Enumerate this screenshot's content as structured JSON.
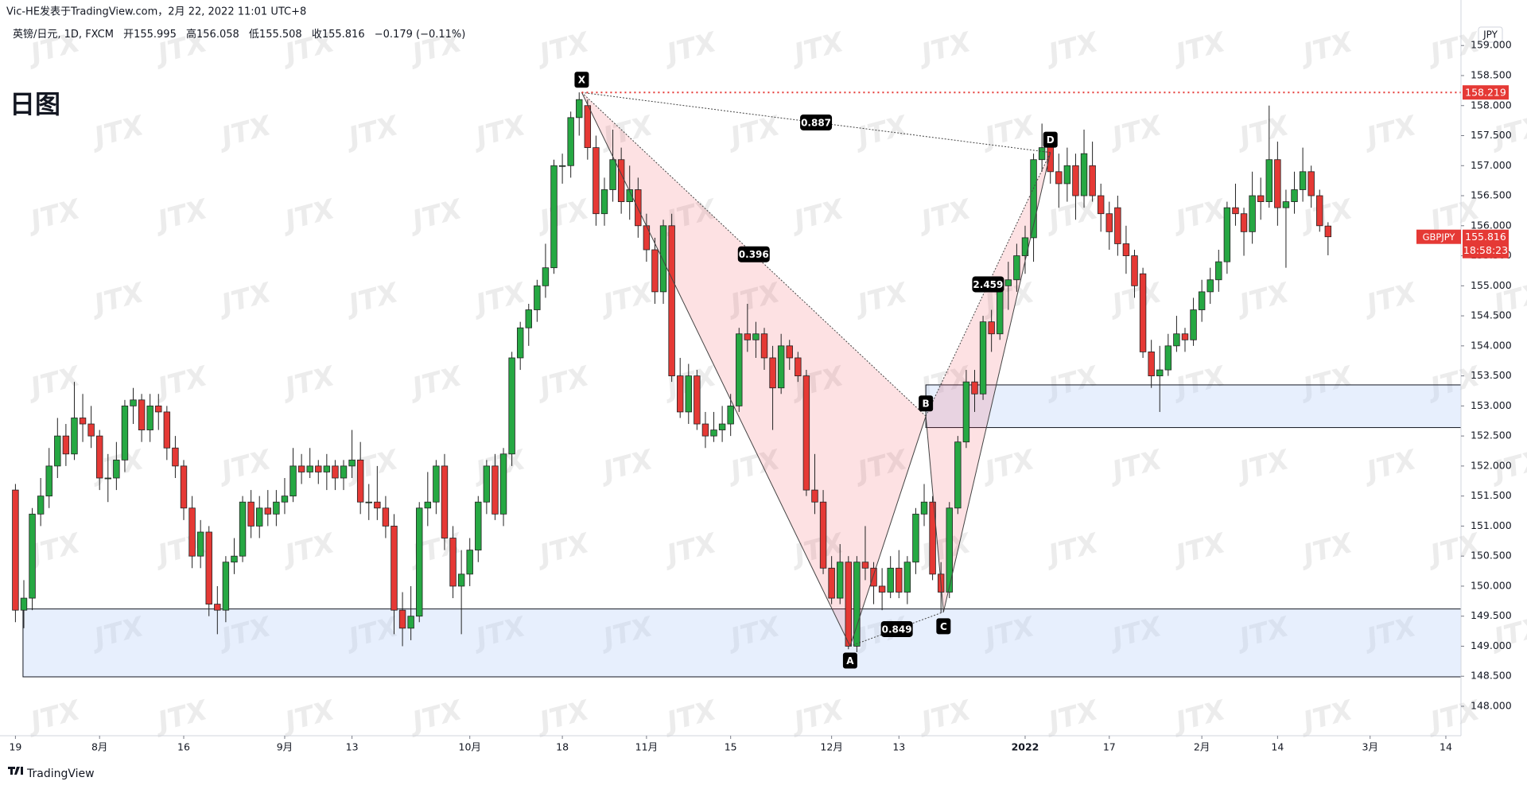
{
  "header": {
    "author": "Vic-HE发表于TradingView.com，2月 22, 2022 11:01 UTC+8",
    "caption": "日图",
    "currency": "JPY",
    "watermark": "JTX"
  },
  "legend": {
    "symbol": "英镑/日元, 1D, FXCM",
    "open_label": "开",
    "open": 155.995,
    "high_label": "高",
    "high": 156.058,
    "low_label": "低",
    "low": 155.508,
    "close_label": "收",
    "close": 155.816,
    "change": "−0.179 (−0.11%)"
  },
  "footer": {
    "brand": "TradingView"
  },
  "chart_data": {
    "type": "candlestick",
    "up_color": "#26a843",
    "down_color": "#e53935",
    "grid": false,
    "xlim": [
      -0.7,
      171.8
    ],
    "ylim": [
      147.51,
      159.44
    ],
    "xticks": [
      {
        "value": 0,
        "label": "19"
      },
      {
        "value": 10,
        "label": "8月"
      },
      {
        "value": 20,
        "label": "16"
      },
      {
        "value": 32,
        "label": "9月"
      },
      {
        "value": 40,
        "label": "13"
      },
      {
        "value": 54,
        "label": "10月"
      },
      {
        "value": 65,
        "label": "18"
      },
      {
        "value": 75,
        "label": "11月"
      },
      {
        "value": 85,
        "label": "15"
      },
      {
        "value": 97,
        "label": "12月"
      },
      {
        "value": 105,
        "label": "13"
      },
      {
        "value": 120,
        "label": "2022"
      },
      {
        "value": 130,
        "label": "17"
      },
      {
        "value": 141,
        "label": "2月"
      },
      {
        "value": 150,
        "label": "14"
      },
      {
        "value": 161,
        "label": "3月"
      },
      {
        "value": 170,
        "label": "14"
      }
    ],
    "yticks": [
      {
        "value": 148,
        "label": "148.000"
      },
      {
        "value": 148.5,
        "label": "148.500"
      },
      {
        "value": 149,
        "label": "149.000"
      },
      {
        "value": 149.5,
        "label": "149.500"
      },
      {
        "value": 150,
        "label": "150.000"
      },
      {
        "value": 150.5,
        "label": "150.500"
      },
      {
        "value": 151,
        "label": "151.000"
      },
      {
        "value": 151.5,
        "label": "151.500"
      },
      {
        "value": 152,
        "label": "152.000"
      },
      {
        "value": 152.5,
        "label": "152.500"
      },
      {
        "value": 153,
        "label": "153.000"
      },
      {
        "value": 153.5,
        "label": "153.500"
      },
      {
        "value": 154,
        "label": "154.000"
      },
      {
        "value": 154.5,
        "label": "154.500"
      },
      {
        "value": 155,
        "label": "155.000"
      },
      {
        "value": 155.5,
        "label": "155.500"
      },
      {
        "value": 156,
        "label": "156.000"
      },
      {
        "value": 156.5,
        "label": "156.500"
      },
      {
        "value": 157,
        "label": "157.000"
      },
      {
        "value": 157.5,
        "label": "157.500"
      },
      {
        "value": 158,
        "label": "158.000"
      },
      {
        "value": 158.5,
        "label": "158.500"
      },
      {
        "value": 159,
        "label": "159.000"
      }
    ],
    "candles": [
      [
        151.6,
        151.7,
        149.4,
        149.6
      ],
      [
        149.6,
        150.1,
        149.3,
        149.8
      ],
      [
        149.8,
        151.3,
        149.6,
        151.2
      ],
      [
        151.2,
        151.8,
        151.0,
        151.5
      ],
      [
        151.5,
        152.3,
        151.3,
        152.0
      ],
      [
        152.0,
        152.8,
        151.8,
        152.5
      ],
      [
        152.5,
        152.7,
        152.0,
        152.2
      ],
      [
        152.2,
        153.4,
        152.1,
        152.8
      ],
      [
        152.8,
        153.2,
        152.4,
        152.7
      ],
      [
        152.7,
        153.0,
        152.3,
        152.5
      ],
      [
        152.5,
        152.6,
        151.6,
        151.8
      ],
      [
        151.8,
        152.2,
        151.4,
        151.8
      ],
      [
        151.8,
        152.4,
        151.6,
        152.1
      ],
      [
        152.1,
        153.1,
        151.9,
        153.0
      ],
      [
        153.0,
        153.3,
        152.7,
        153.1
      ],
      [
        153.1,
        153.2,
        152.4,
        152.6
      ],
      [
        152.6,
        153.2,
        152.4,
        153.0
      ],
      [
        153.0,
        153.2,
        152.6,
        152.9
      ],
      [
        152.9,
        153.0,
        152.1,
        152.3
      ],
      [
        152.3,
        152.5,
        151.8,
        152.0
      ],
      [
        152.0,
        152.1,
        151.1,
        151.3
      ],
      [
        151.3,
        151.5,
        150.3,
        150.5
      ],
      [
        150.5,
        151.1,
        150.3,
        150.9
      ],
      [
        150.9,
        151.0,
        149.5,
        149.7
      ],
      [
        149.7,
        150.0,
        149.2,
        149.6
      ],
      [
        149.6,
        150.5,
        149.4,
        150.4
      ],
      [
        150.4,
        150.8,
        150.2,
        150.5
      ],
      [
        150.5,
        151.5,
        150.4,
        151.4
      ],
      [
        151.4,
        151.6,
        150.8,
        151.0
      ],
      [
        151.0,
        151.5,
        150.8,
        151.3
      ],
      [
        151.3,
        151.6,
        151.0,
        151.2
      ],
      [
        151.2,
        151.6,
        151.0,
        151.4
      ],
      [
        151.4,
        151.8,
        151.2,
        151.5
      ],
      [
        151.5,
        152.3,
        151.4,
        152.0
      ],
      [
        152.0,
        152.2,
        151.7,
        151.9
      ],
      [
        151.9,
        152.3,
        151.8,
        152.0
      ],
      [
        152.0,
        152.1,
        151.7,
        151.9
      ],
      [
        151.9,
        152.2,
        151.6,
        152.0
      ],
      [
        152.0,
        152.1,
        151.6,
        151.8
      ],
      [
        151.8,
        152.1,
        151.6,
        152.0
      ],
      [
        152.0,
        152.6,
        151.8,
        152.1
      ],
      [
        152.1,
        152.4,
        151.2,
        151.4
      ],
      [
        151.4,
        151.7,
        151.1,
        151.4
      ],
      [
        151.4,
        152.0,
        151.1,
        151.3
      ],
      [
        151.3,
        151.5,
        150.8,
        151.0
      ],
      [
        151.0,
        151.2,
        149.2,
        149.6
      ],
      [
        149.6,
        149.9,
        149.0,
        149.3
      ],
      [
        149.3,
        150.0,
        149.1,
        149.5
      ],
      [
        149.5,
        151.4,
        149.4,
        151.3
      ],
      [
        151.3,
        151.9,
        151.0,
        151.4
      ],
      [
        151.4,
        152.1,
        151.2,
        152.0
      ],
      [
        152.0,
        152.2,
        150.6,
        150.8
      ],
      [
        150.8,
        151.0,
        149.8,
        150.0
      ],
      [
        150.0,
        150.6,
        149.2,
        150.2
      ],
      [
        150.2,
        150.8,
        150.0,
        150.6
      ],
      [
        150.6,
        151.5,
        150.4,
        151.4
      ],
      [
        151.4,
        152.1,
        151.2,
        152.0
      ],
      [
        152.0,
        152.2,
        151.1,
        151.2
      ],
      [
        151.2,
        152.3,
        151.0,
        152.2
      ],
      [
        152.2,
        153.9,
        152.0,
        153.8
      ],
      [
        153.8,
        154.4,
        153.6,
        154.3
      ],
      [
        154.3,
        154.7,
        154.0,
        154.6
      ],
      [
        154.6,
        155.1,
        154.4,
        155.0
      ],
      [
        155.0,
        155.7,
        154.8,
        155.3
      ],
      [
        155.3,
        157.1,
        155.2,
        157.0
      ],
      [
        157.0,
        157.2,
        156.7,
        157.0
      ],
      [
        157.0,
        157.9,
        156.8,
        157.8
      ],
      [
        157.8,
        158.22,
        157.5,
        158.1
      ],
      [
        158.0,
        158.1,
        157.1,
        157.3
      ],
      [
        157.3,
        157.5,
        156.0,
        156.2
      ],
      [
        156.2,
        156.8,
        156.0,
        156.6
      ],
      [
        156.6,
        157.6,
        156.4,
        157.1
      ],
      [
        157.1,
        157.3,
        156.2,
        156.4
      ],
      [
        156.4,
        157.0,
        156.1,
        156.6
      ],
      [
        156.6,
        156.8,
        155.8,
        156.0
      ],
      [
        156.0,
        156.2,
        155.4,
        155.6
      ],
      [
        155.6,
        155.8,
        154.7,
        154.9
      ],
      [
        154.9,
        156.1,
        154.7,
        156.0
      ],
      [
        156.0,
        156.2,
        153.4,
        153.5
      ],
      [
        153.5,
        153.8,
        152.8,
        152.9
      ],
      [
        152.9,
        153.7,
        152.7,
        153.5
      ],
      [
        153.5,
        153.6,
        152.6,
        152.7
      ],
      [
        152.7,
        152.9,
        152.3,
        152.5
      ],
      [
        152.5,
        152.9,
        152.4,
        152.6
      ],
      [
        152.6,
        153.0,
        152.4,
        152.7
      ],
      [
        152.7,
        153.2,
        152.5,
        153.0
      ],
      [
        153.0,
        154.3,
        152.9,
        154.2
      ],
      [
        154.2,
        154.7,
        153.9,
        154.1
      ],
      [
        154.1,
        154.4,
        153.8,
        154.2
      ],
      [
        154.2,
        154.3,
        153.6,
        153.8
      ],
      [
        153.8,
        154.0,
        152.6,
        153.3
      ],
      [
        153.3,
        154.2,
        153.2,
        154.0
      ],
      [
        154.0,
        154.1,
        153.6,
        153.8
      ],
      [
        153.8,
        153.9,
        153.4,
        153.5
      ],
      [
        153.5,
        153.6,
        151.5,
        151.6
      ],
      [
        151.6,
        152.2,
        151.2,
        151.4
      ],
      [
        151.4,
        151.6,
        150.2,
        150.3
      ],
      [
        150.3,
        150.5,
        149.7,
        149.8
      ],
      [
        149.8,
        150.7,
        149.7,
        150.4
      ],
      [
        150.4,
        150.5,
        148.95,
        149.0
      ],
      [
        149.0,
        150.5,
        148.9,
        150.4
      ],
      [
        150.4,
        151.0,
        150.1,
        150.3
      ],
      [
        150.3,
        150.4,
        149.7,
        150.0
      ],
      [
        150.0,
        150.3,
        149.6,
        149.9
      ],
      [
        149.9,
        150.5,
        149.8,
        150.3
      ],
      [
        150.3,
        150.6,
        149.8,
        149.9
      ],
      [
        149.9,
        150.5,
        149.7,
        150.4
      ],
      [
        150.4,
        151.3,
        150.2,
        151.2
      ],
      [
        151.2,
        151.7,
        151.0,
        151.4
      ],
      [
        151.4,
        151.5,
        150.1,
        150.2
      ],
      [
        150.2,
        150.4,
        149.55,
        149.9
      ],
      [
        149.9,
        151.4,
        149.8,
        151.3
      ],
      [
        151.3,
        152.5,
        151.2,
        152.4
      ],
      [
        152.4,
        153.6,
        152.3,
        153.4
      ],
      [
        153.4,
        153.6,
        152.9,
        153.2
      ],
      [
        153.2,
        154.5,
        153.1,
        154.4
      ],
      [
        154.4,
        154.6,
        153.9,
        154.2
      ],
      [
        154.2,
        155.1,
        154.1,
        155.0
      ],
      [
        155.0,
        155.4,
        154.6,
        155.1
      ],
      [
        155.1,
        155.7,
        154.9,
        155.5
      ],
      [
        155.5,
        156.0,
        155.2,
        155.8
      ],
      [
        155.8,
        157.2,
        155.4,
        157.1
      ],
      [
        157.1,
        157.7,
        156.9,
        157.3
      ],
      [
        157.4,
        157.5,
        156.7,
        156.9
      ],
      [
        156.9,
        157.2,
        156.3,
        156.7
      ],
      [
        156.7,
        157.3,
        156.4,
        157.0
      ],
      [
        157.0,
        157.2,
        156.1,
        156.5
      ],
      [
        156.5,
        157.6,
        156.3,
        157.2
      ],
      [
        157.0,
        157.4,
        156.4,
        156.5
      ],
      [
        156.5,
        156.7,
        155.9,
        156.2
      ],
      [
        156.2,
        156.4,
        155.6,
        155.9
      ],
      [
        156.3,
        156.5,
        155.5,
        155.7
      ],
      [
        155.7,
        156.0,
        155.2,
        155.5
      ],
      [
        155.5,
        155.6,
        154.8,
        155.0
      ],
      [
        155.2,
        155.3,
        153.8,
        153.9
      ],
      [
        153.9,
        154.1,
        153.3,
        153.5
      ],
      [
        153.5,
        154.0,
        152.9,
        153.6
      ],
      [
        153.6,
        154.2,
        153.5,
        154.0
      ],
      [
        154.0,
        154.5,
        153.9,
        154.2
      ],
      [
        154.2,
        154.3,
        153.9,
        154.1
      ],
      [
        154.1,
        154.8,
        154.0,
        154.6
      ],
      [
        154.6,
        155.1,
        154.4,
        154.9
      ],
      [
        154.9,
        155.3,
        154.7,
        155.1
      ],
      [
        155.1,
        155.6,
        154.9,
        155.4
      ],
      [
        155.4,
        156.4,
        155.2,
        156.3
      ],
      [
        156.3,
        156.7,
        156.0,
        156.2
      ],
      [
        156.2,
        156.3,
        155.5,
        155.9
      ],
      [
        155.9,
        156.9,
        155.7,
        156.5
      ],
      [
        156.5,
        156.8,
        156.1,
        156.4
      ],
      [
        156.4,
        158.0,
        156.3,
        157.1
      ],
      [
        157.1,
        157.4,
        156.0,
        156.3
      ],
      [
        156.3,
        156.6,
        155.3,
        156.4
      ],
      [
        156.4,
        156.9,
        156.2,
        156.6
      ],
      [
        156.6,
        157.3,
        156.4,
        156.9
      ],
      [
        156.9,
        157.0,
        156.3,
        156.5
      ],
      [
        156.5,
        156.6,
        155.9,
        156.0
      ],
      [
        155.995,
        156.058,
        155.508,
        155.816
      ]
    ],
    "zones": [
      {
        "x0": 0.9,
        "top": 149.62,
        "bottom": 148.49
      },
      {
        "x0": 108.2,
        "top": 153.35,
        "bottom": 152.64
      }
    ],
    "pattern": {
      "points": [
        {
          "label": "X",
          "x": 67.3,
          "y": 158.219
        },
        {
          "label": "A",
          "x": 99.2,
          "y": 149.0
        },
        {
          "label": "B",
          "x": 108.2,
          "y": 152.83
        },
        {
          "label": "C",
          "x": 110.3,
          "y": 149.57
        },
        {
          "label": "D",
          "x": 123.0,
          "y": 157.22
        }
      ],
      "ratios": [
        0.887,
        0.396,
        2.459,
        0.849
      ]
    },
    "level": 158.219,
    "last_price": 155.816,
    "symbol_tag": "GBPJPY",
    "countdown": "18:58:23"
  }
}
